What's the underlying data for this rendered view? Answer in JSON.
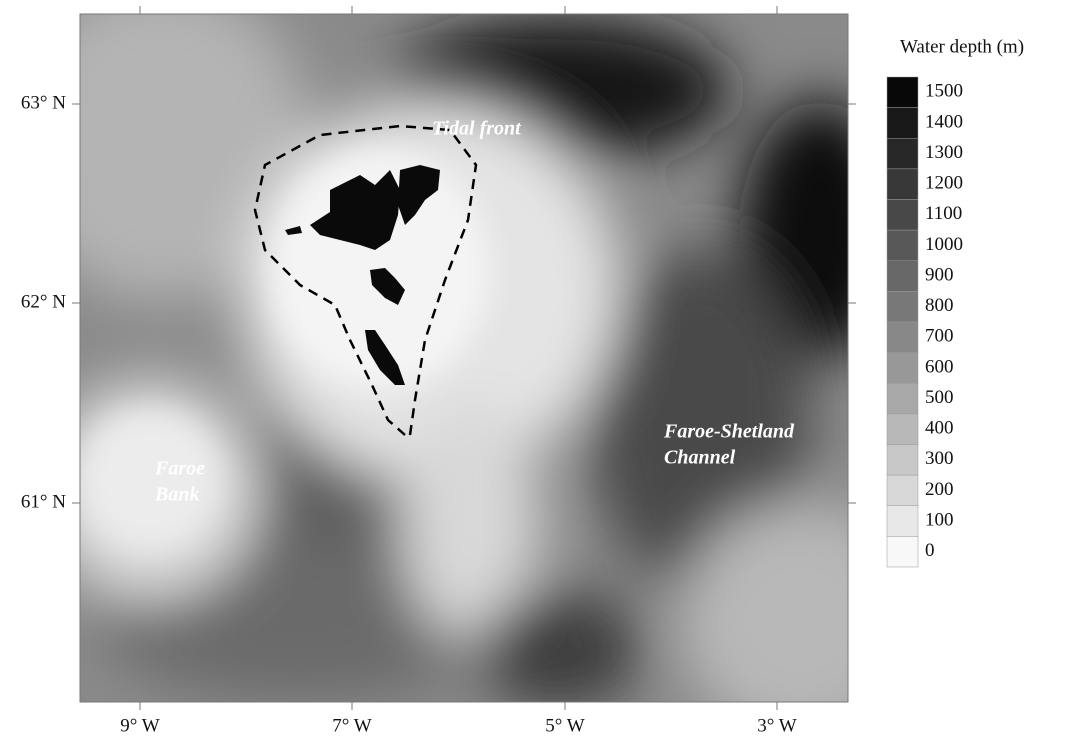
{
  "map": {
    "lat_labels": [
      "63° N",
      "62° N",
      "61° N"
    ],
    "lon_labels": [
      "9° W",
      "7° W",
      "5° W",
      "3° W"
    ],
    "annotations": {
      "tidal_front": "Tidal front",
      "faroe_bank": [
        "Faroe",
        "Bank"
      ],
      "channel": [
        "Faroe-Shetland",
        "Channel"
      ]
    },
    "legend": {
      "title": "Water depth (m)",
      "ticks": [
        1500,
        1400,
        1300,
        1200,
        1100,
        1000,
        900,
        800,
        700,
        600,
        500,
        400,
        300,
        200,
        100,
        0
      ]
    }
  }
}
